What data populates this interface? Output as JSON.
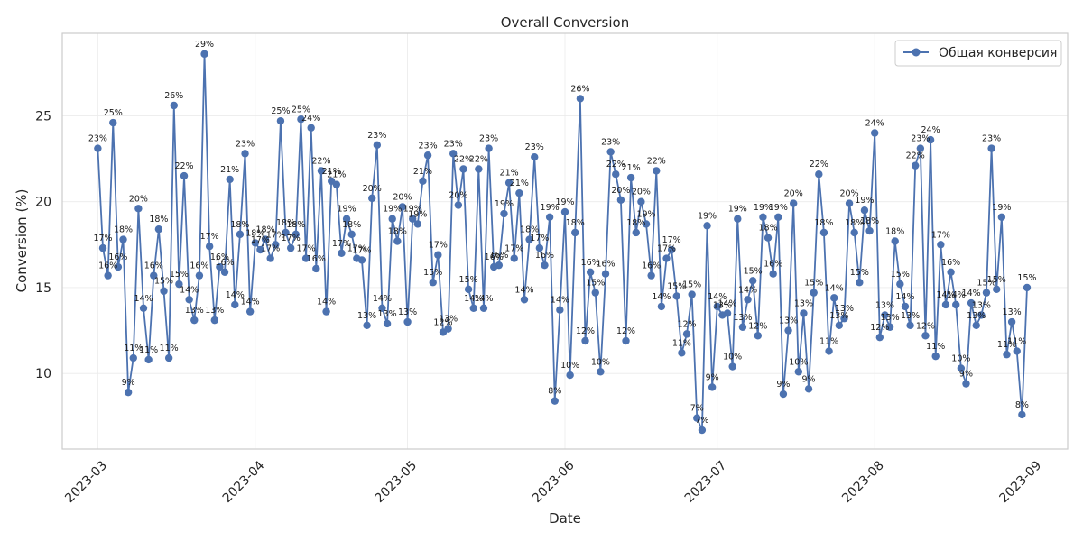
{
  "chart_data": {
    "type": "line",
    "title": "Overall Conversion",
    "xlabel": "Date",
    "ylabel": "Conversion (%)",
    "x_start": "2023-03-01",
    "x_end": "2023-08-31",
    "xlim": [
      "2023-02-22",
      "2023-09-08"
    ],
    "ylim": [
      5.6,
      29.8
    ],
    "x_ticks": [
      "2023-03",
      "2023-04",
      "2023-05",
      "2023-06",
      "2023-07",
      "2023-08",
      "2023-09"
    ],
    "y_ticks": [
      10,
      15,
      20,
      25
    ],
    "grid": true,
    "legend_position": "top-right",
    "series": [
      {
        "name": "Общая конверсия",
        "color": "#4c72b0",
        "values": [
          23.1,
          17.3,
          15.7,
          24.6,
          16.2,
          17.8,
          8.9,
          10.9,
          19.6,
          13.8,
          10.8,
          15.7,
          18.4,
          14.8,
          10.9,
          25.6,
          15.2,
          21.5,
          14.3,
          13.1,
          15.7,
          28.6,
          17.4,
          13.1,
          16.2,
          15.9,
          21.3,
          14.0,
          18.1,
          22.8,
          13.6,
          17.6,
          17.2,
          17.8,
          16.7,
          17.5,
          24.7,
          18.2,
          17.3,
          18.1,
          24.8,
          16.7,
          24.3,
          16.1,
          21.8,
          13.6,
          21.2,
          21.0,
          17.0,
          19.0,
          18.1,
          16.7,
          16.6,
          12.8,
          20.2,
          23.3,
          13.8,
          12.9,
          19.0,
          17.7,
          19.7,
          13.0,
          19.0,
          18.7,
          21.2,
          22.7,
          15.3,
          16.9,
          12.4,
          12.6,
          22.8,
          19.8,
          21.9,
          14.9,
          13.8,
          21.9,
          13.8,
          23.1,
          16.2,
          16.3,
          19.3,
          21.1,
          16.7,
          20.5,
          14.3,
          17.8,
          22.6,
          17.3,
          16.3,
          19.1,
          8.4,
          13.7,
          19.4,
          9.9,
          18.2,
          26.0,
          11.9,
          15.9,
          14.7,
          10.1,
          15.8,
          22.9,
          21.6,
          20.1,
          11.9,
          21.4,
          18.2,
          20.0,
          18.7,
          15.7,
          21.8,
          13.9,
          16.7,
          17.2,
          14.5,
          11.2,
          12.3,
          14.6,
          7.4,
          6.7,
          18.6,
          9.2,
          13.9,
          13.4,
          13.5,
          10.4,
          19.0,
          12.7,
          14.3,
          15.4,
          12.2,
          19.1,
          17.9,
          15.8,
          19.1,
          8.8,
          12.5,
          19.9,
          10.1,
          13.5,
          9.1,
          14.7,
          21.6,
          18.2,
          11.3,
          14.4,
          12.8,
          13.2,
          19.9,
          18.2,
          15.3,
          19.5,
          18.3,
          24.0,
          12.1,
          13.4,
          12.7,
          17.7,
          15.2,
          13.9,
          12.8,
          22.1,
          23.1,
          12.2,
          23.6,
          11.0,
          17.5,
          14.0,
          15.9,
          14.0,
          10.3,
          9.4,
          14.1,
          12.8,
          13.4,
          14.7,
          23.1,
          14.9,
          19.1,
          11.1,
          13.0,
          11.3,
          7.6,
          15.0
        ]
      }
    ],
    "data_labels": [
      "23%",
      "17%",
      "16%",
      "25%",
      "16%",
      "18%",
      "9%",
      "11%",
      "20%",
      "14%",
      "11%",
      "16%",
      "18%",
      "15%",
      "11%",
      "26%",
      "15%",
      "22%",
      "14%",
      "13%",
      "16%",
      "29%",
      "17%",
      "13%",
      "16%",
      "16%",
      "21%",
      "14%",
      "18%",
      "23%",
      "14%",
      "18%",
      "17%",
      "18%",
      "17%",
      "17%",
      "25%",
      "18%",
      "17%",
      "18%",
      "25%",
      "17%",
      "24%",
      "16%",
      "22%",
      "14%",
      "21%",
      "21%",
      "17%",
      "19%",
      "18%",
      "17%",
      "17%",
      "13%",
      "20%",
      "23%",
      "14%",
      "13%",
      "19%",
      "18%",
      "20%",
      "13%",
      "19%",
      "19%",
      "21%",
      "23%",
      "15%",
      "17%",
      "12%",
      "13%",
      "23%",
      "20%",
      "22%",
      "15%",
      "14%",
      "22%",
      "14%",
      "23%",
      "16%",
      "16%",
      "19%",
      "21%",
      "17%",
      "21%",
      "14%",
      "18%",
      "23%",
      "17%",
      "16%",
      "19%",
      "8%",
      "14%",
      "19%",
      "10%",
      "18%",
      "26%",
      "12%",
      "16%",
      "15%",
      "10%",
      "16%",
      "23%",
      "22%",
      "20%",
      "12%",
      "21%",
      "18%",
      "20%",
      "19%",
      "16%",
      "22%",
      "14%",
      "17%",
      "17%",
      "15%",
      "11%",
      "12%",
      "15%",
      "7%",
      "7%",
      "19%",
      "9%",
      "14%",
      "13%",
      "14%",
      "10%",
      "19%",
      "13%",
      "14%",
      "15%",
      "12%",
      "19%",
      "18%",
      "16%",
      "19%",
      "9%",
      "13%",
      "20%",
      "10%",
      "13%",
      "9%",
      "15%",
      "22%",
      "18%",
      "11%",
      "14%",
      "13%",
      "13%",
      "20%",
      "18%",
      "15%",
      "19%",
      "18%",
      "24%",
      "12%",
      "13%",
      "13%",
      "18%",
      "15%",
      "14%",
      "13%",
      "22%",
      "23%",
      "12%",
      "24%",
      "11%",
      "17%",
      "14%",
      "16%",
      "14%",
      "10%",
      "9%",
      "14%",
      "13%",
      "13%",
      "15%",
      "23%",
      "15%",
      "19%",
      "11%",
      "13%",
      "11%",
      "8%",
      "15%"
    ]
  }
}
